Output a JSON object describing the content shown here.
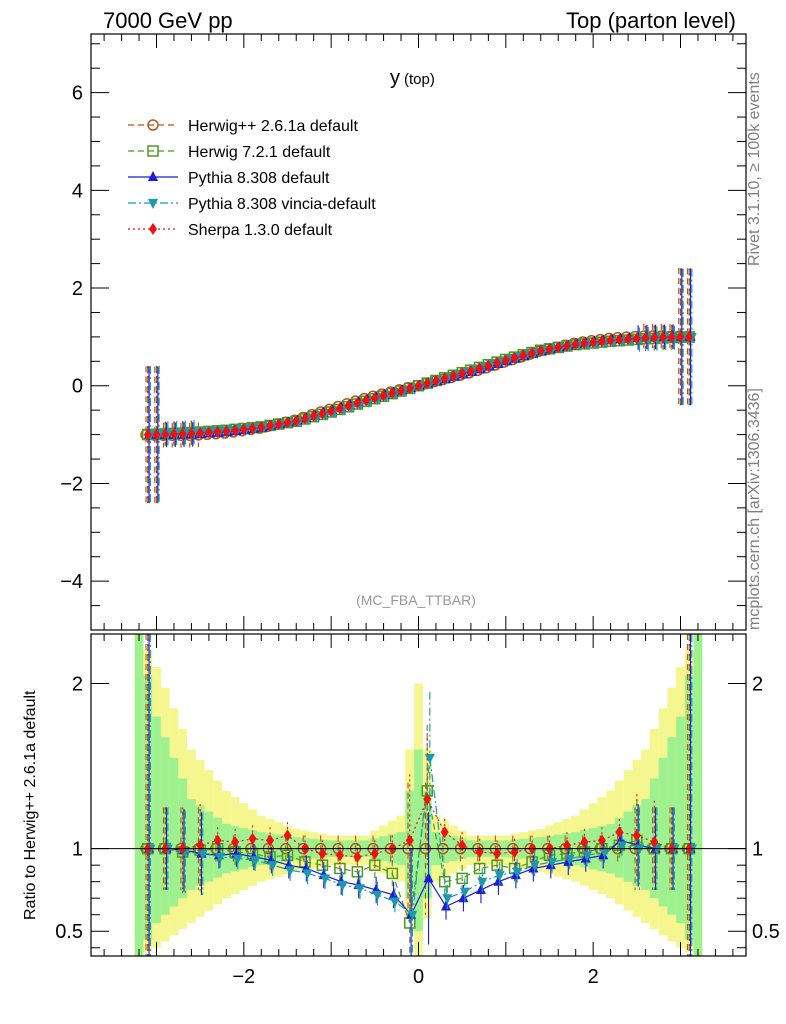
{
  "header": {
    "left": "7000 GeV pp",
    "right": "Top (parton level)"
  },
  "side_labels": {
    "rivet": "Rivet 3.1.10, ≥ 100k events",
    "source": "mcplots.cern.ch [arXiv:1306.3436]"
  },
  "ratio_ylabel": "Ratio to Herwig++ 2.6.1a default",
  "chart_data": [
    {
      "type": "line",
      "title": "y",
      "title_sub": "(top)",
      "watermark": "(MC_FBA_TTBAR)",
      "xlabel": "",
      "ylabel": "",
      "xlim": [
        -3.75,
        3.75
      ],
      "ylim": [
        -5,
        7.2
      ],
      "yticks": [
        -4,
        -2,
        0,
        2,
        4,
        6
      ],
      "yticklabels": [
        "−4",
        "−2",
        "0",
        "2",
        "4",
        "6"
      ],
      "legend_position": "top-left",
      "bins": {
        "x_min": -3.2,
        "x_max": 3.2,
        "bin_width": 0.2
      },
      "series": [
        {
          "name": "Herwig++ 2.6.1a default",
          "color": "#b0581c",
          "marker": "circle-open",
          "dash": "dashed"
        },
        {
          "name": "Herwig 7.2.1 default",
          "color": "#4c9a1a",
          "marker": "square-open",
          "dash": "dashed"
        },
        {
          "name": "Pythia 8.308 default",
          "color": "#1b1bd8",
          "marker": "triangle-up",
          "dash": "solid"
        },
        {
          "name": "Pythia 8.308 vincia-default",
          "color": "#1a9ab0",
          "marker": "triangle-down",
          "dash": "dashdot"
        },
        {
          "name": "Sherpa 1.3.0 default",
          "color": "#ee1111",
          "marker": "diamond",
          "dash": "dotted"
        }
      ],
      "profile": {
        "x": [
          -3.4,
          -3.0,
          -2.6,
          -2.2,
          -1.8,
          -1.4,
          -1.0,
          -0.6,
          -0.2,
          0.0,
          0.2,
          0.6,
          1.0,
          1.4,
          1.8,
          2.2,
          2.6,
          3.0,
          3.4
        ],
        "y": [
          -1.0,
          -1.0,
          -0.98,
          -0.93,
          -0.85,
          -0.72,
          -0.52,
          -0.3,
          -0.1,
          0.0,
          0.1,
          0.3,
          0.52,
          0.72,
          0.85,
          0.93,
          0.98,
          1.0,
          1.0
        ]
      },
      "error_bars": {
        "outer_x": [
          -3.2,
          -3.0,
          3.0,
          3.2
        ],
        "outer_err": 1.4,
        "inner_err": 0.25
      }
    },
    {
      "type": "line",
      "title": "ratio",
      "xlabel": "",
      "ylabel": "Ratio to Herwig++ 2.6.1a default",
      "xlim": [
        -3.75,
        3.75
      ],
      "ylim": [
        0.35,
        2.3
      ],
      "yticks": [
        0.5,
        1,
        2
      ],
      "yticklabels": [
        "0.5",
        "1",
        "2"
      ],
      "xticks": [
        -2,
        0,
        2
      ],
      "xticklabels": [
        "−2",
        "0",
        "2"
      ],
      "reference": 1,
      "band_yellow": {
        "x": [
          -3.2,
          -3.0,
          -2.6,
          -2.2,
          -1.8,
          -1.4,
          -1.0,
          -0.6,
          -0.2,
          0.0,
          0.2,
          0.6,
          1.0,
          1.4,
          1.8,
          2.2,
          2.6,
          3.0,
          3.2
        ],
        "lo": [
          0.35,
          0.4,
          0.55,
          0.7,
          0.8,
          0.86,
          0.9,
          0.9,
          0.8,
          0.35,
          0.8,
          0.9,
          0.9,
          0.86,
          0.8,
          0.7,
          0.55,
          0.4,
          0.35
        ],
        "hi": [
          2.3,
          2.1,
          1.6,
          1.35,
          1.2,
          1.12,
          1.08,
          1.08,
          1.2,
          2.0,
          1.2,
          1.08,
          1.08,
          1.12,
          1.2,
          1.35,
          1.6,
          2.1,
          2.3
        ]
      },
      "band_green": {
        "x": [
          -3.2,
          -3.0,
          -2.6,
          -2.2,
          -1.8,
          -1.4,
          -1.0,
          -0.6,
          -0.2,
          0.0,
          0.2,
          0.6,
          1.0,
          1.4,
          1.8,
          2.2,
          2.6,
          3.0,
          3.2
        ],
        "lo": [
          0.35,
          0.55,
          0.75,
          0.85,
          0.9,
          0.93,
          0.95,
          0.95,
          0.9,
          0.5,
          0.9,
          0.95,
          0.95,
          0.93,
          0.9,
          0.85,
          0.75,
          0.55,
          0.35
        ],
        "hi": [
          2.3,
          1.8,
          1.3,
          1.15,
          1.1,
          1.07,
          1.05,
          1.05,
          1.1,
          1.6,
          1.1,
          1.05,
          1.05,
          1.07,
          1.1,
          1.15,
          1.3,
          1.8,
          2.3
        ]
      },
      "series_values": {
        "x": [
          -3.1,
          -2.9,
          -2.7,
          -2.5,
          -2.3,
          -2.1,
          -1.9,
          -1.7,
          -1.5,
          -1.3,
          -1.1,
          -0.9,
          -0.7,
          -0.5,
          -0.3,
          -0.1,
          0.1,
          0.3,
          0.5,
          0.7,
          0.9,
          1.1,
          1.3,
          1.5,
          1.7,
          1.9,
          2.1,
          2.3,
          2.5,
          2.7,
          2.9,
          3.1
        ],
        "Herwig++ 2.6.1a default": [
          1,
          1,
          1,
          1,
          1,
          1,
          1,
          1,
          1,
          1,
          1,
          1,
          1,
          1,
          1,
          1,
          1,
          1,
          1,
          1,
          1,
          1,
          1,
          1,
          1,
          1,
          1,
          1,
          1,
          1,
          1,
          1
        ],
        "Herwig 7.2.1 default": [
          1,
          1,
          0.98,
          0.99,
          1.0,
          0.98,
          0.97,
          0.95,
          0.96,
          0.92,
          0.9,
          0.88,
          0.86,
          0.9,
          0.85,
          0.55,
          1.35,
          0.8,
          0.82,
          0.88,
          0.9,
          0.88,
          0.92,
          0.96,
          0.97,
          0.98,
          1.0,
          1.02,
          1.05,
          1.0,
          1,
          1
        ],
        "Pythia 8.308 default": [
          1,
          1,
          0.99,
          0.97,
          0.96,
          0.97,
          0.95,
          0.93,
          0.9,
          0.88,
          0.84,
          0.8,
          0.78,
          0.75,
          0.72,
          0.6,
          0.82,
          0.65,
          0.7,
          0.75,
          0.8,
          0.84,
          0.88,
          0.9,
          0.92,
          0.94,
          0.96,
          1.05,
          1.02,
          1.0,
          1,
          1
        ],
        "Pythia 8.308 vincia-default": [
          1,
          1,
          0.98,
          0.97,
          0.95,
          0.94,
          0.93,
          0.9,
          0.87,
          0.85,
          0.82,
          0.78,
          0.76,
          0.72,
          0.68,
          0.6,
          1.55,
          0.7,
          0.74,
          0.8,
          0.84,
          0.86,
          0.9,
          0.92,
          0.94,
          0.96,
          0.98,
          1.02,
          1.0,
          1.0,
          1,
          1
        ],
        "Sherpa 1.3.0 default": [
          1,
          1,
          1.0,
          1.02,
          1.05,
          1.04,
          1.06,
          1.05,
          1.08,
          1.0,
          0.97,
          0.96,
          0.95,
          0.97,
          1.0,
          1.05,
          1.3,
          1.1,
          1.02,
          0.98,
          0.97,
          0.98,
          1.0,
          1.0,
          1.02,
          1.04,
          1.05,
          1.1,
          1.08,
          1.04,
          1,
          1
        ]
      }
    }
  ]
}
